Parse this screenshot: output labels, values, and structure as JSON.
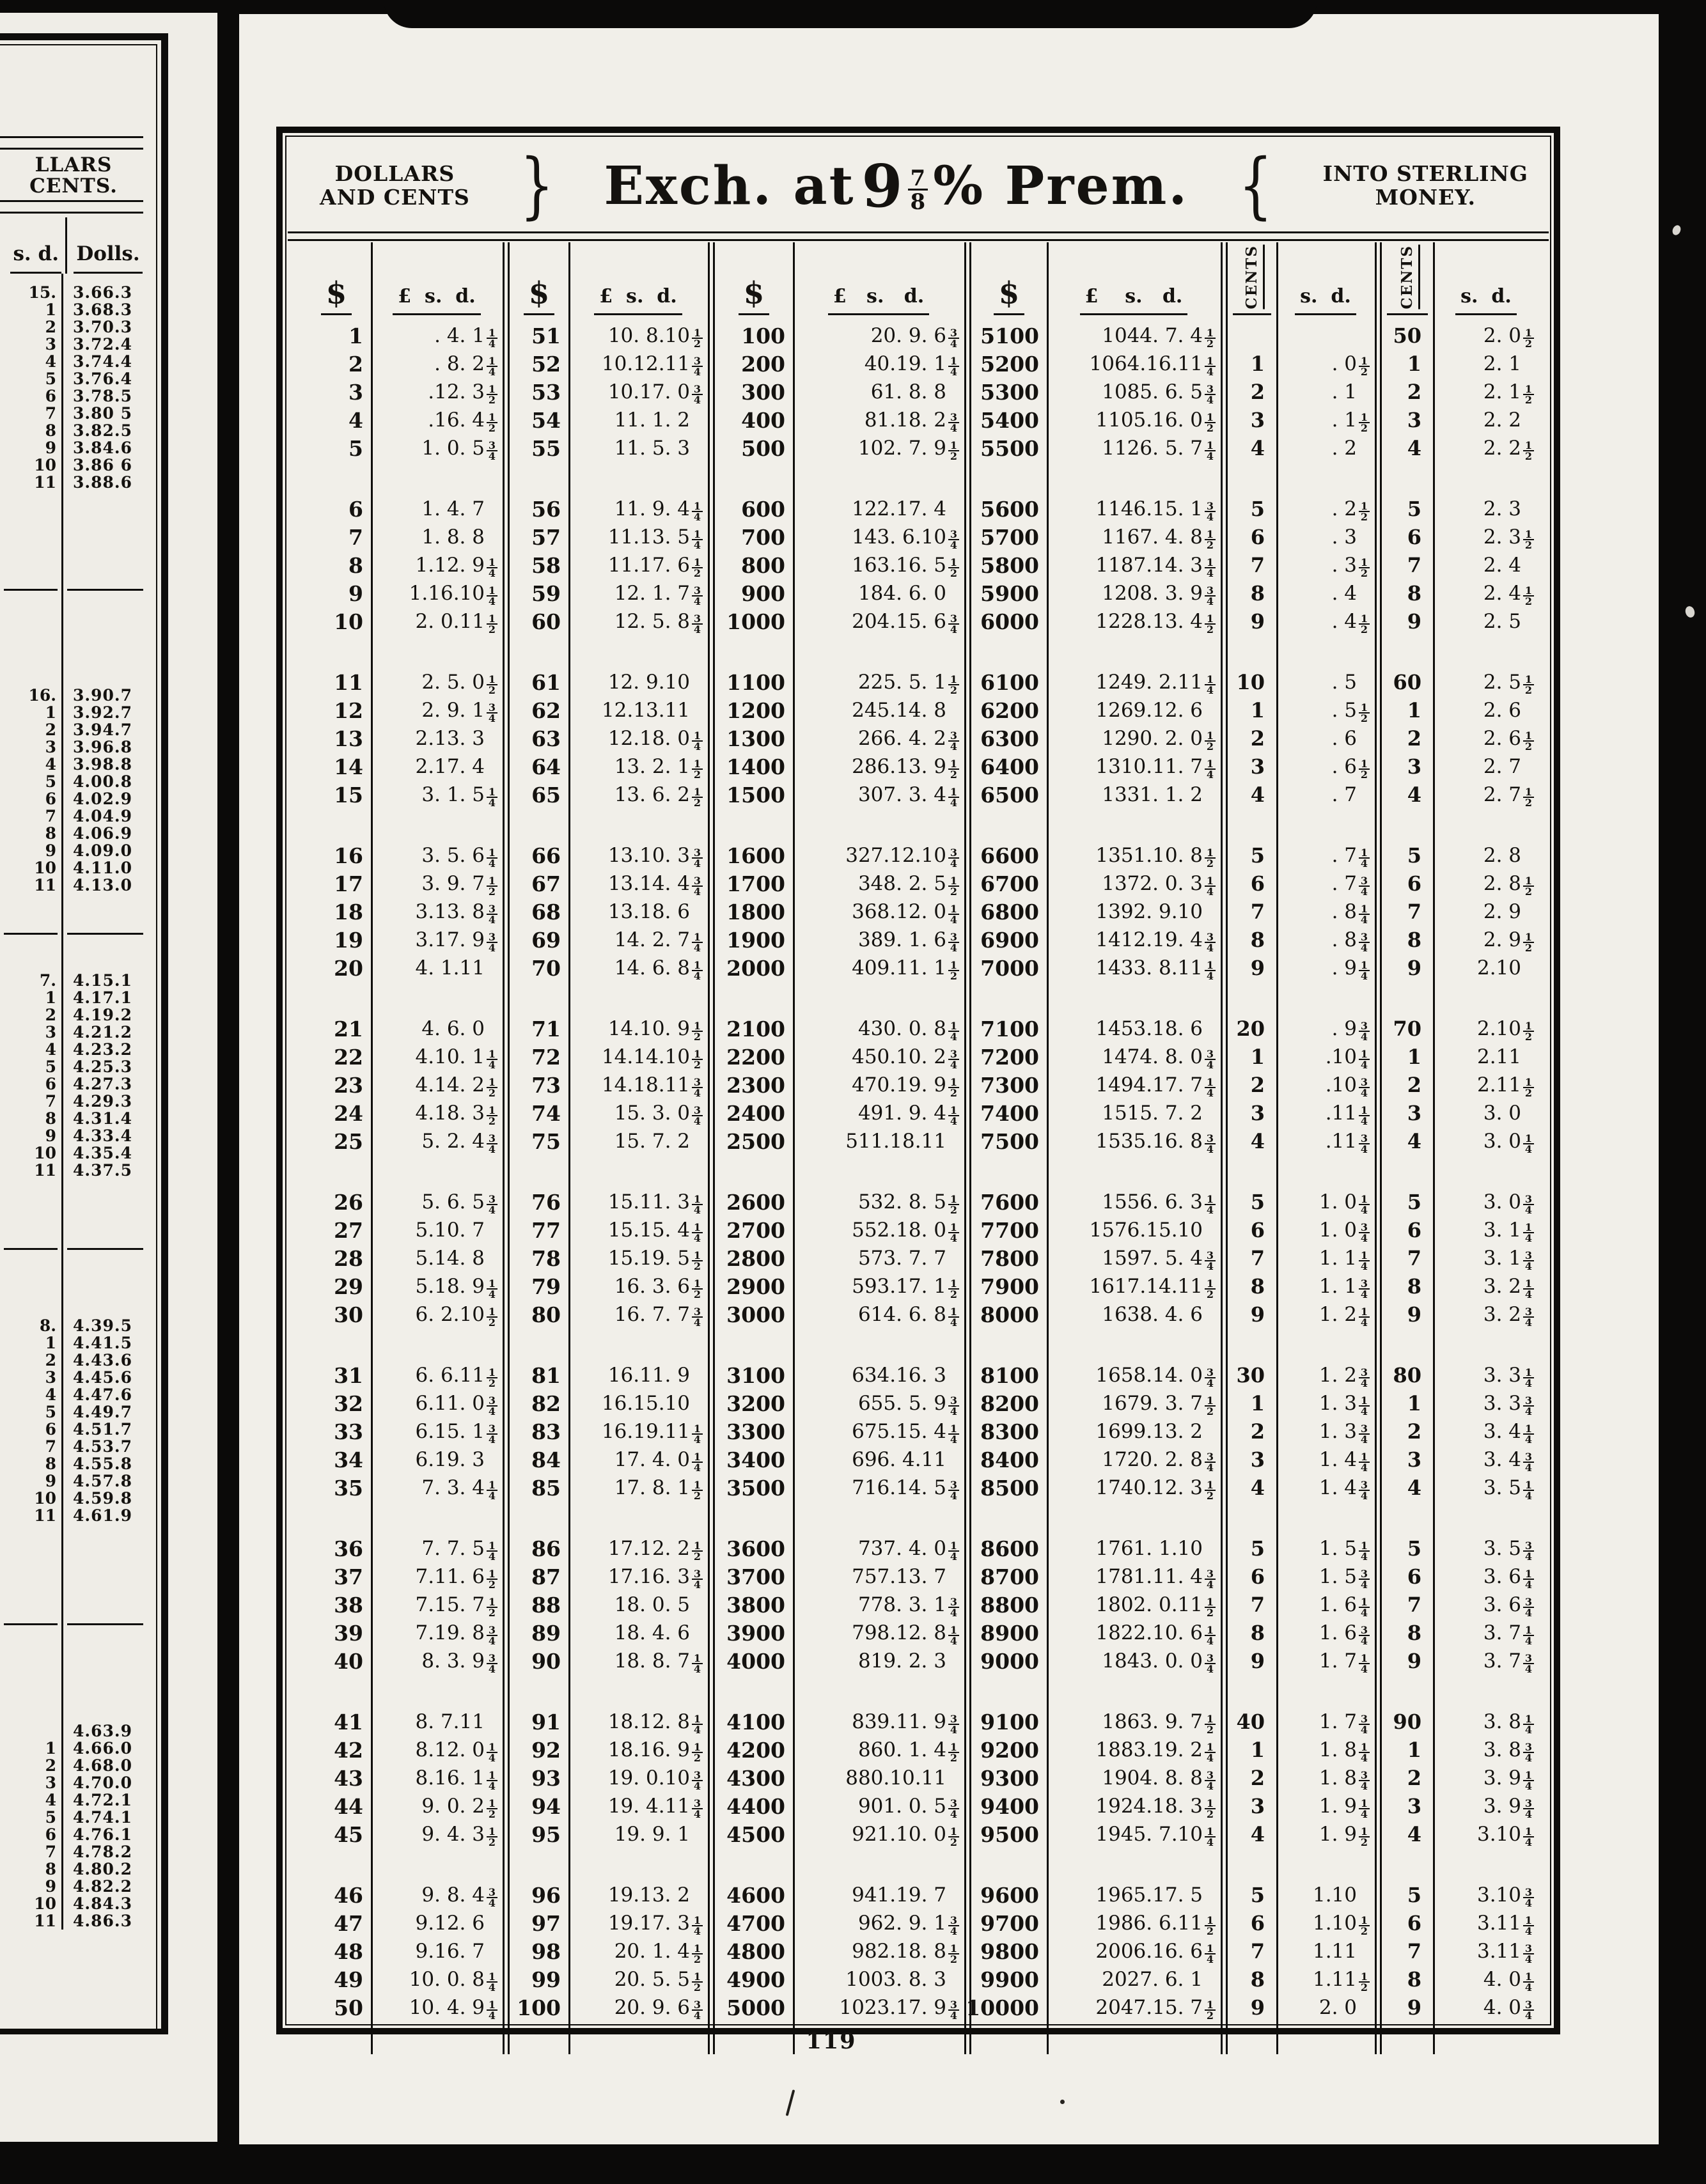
{
  "colors": {
    "ink": "#14120f",
    "paper": "#f1efe9"
  },
  "page_number": "119",
  "header": {
    "left_line1": "DOLLARS",
    "left_line2": "AND CENTS",
    "brace_left": "}",
    "title_prefix": "Exch. at",
    "title_nine": "9",
    "title_fraction_num": "7",
    "title_fraction_den": "8",
    "title_suffix": "% Prem.",
    "brace_right": "{",
    "right_line1": "INTO STERLING",
    "right_line2": "MONEY."
  },
  "main_table": {
    "column_headers": [
      "$",
      "£  s.  d.",
      "$",
      "£  s.  d.",
      "$",
      "£   s.   d.",
      "$",
      "£    s.   d.",
      "CENTS",
      "s.  d.",
      "CENTS",
      "s.  d."
    ],
    "blocks": [
      {
        "rows": [
          [
            "1",
            ". 4. 1¼",
            "51",
            "10. 8.10½",
            "100",
            "20. 9. 6¾",
            "5100",
            "1044. 7. 4½",
            "",
            "",
            "50",
            "2. 0½"
          ],
          [
            "2",
            ". 8. 2¼",
            "52",
            "10.12.11¾",
            "200",
            "40.19. 1¼",
            "5200",
            "1064.16.11¼",
            "1",
            ". 0½",
            "1",
            "2. 1"
          ],
          [
            "3",
            ".12. 3½",
            "53",
            "10.17. 0¾",
            "300",
            "61. 8. 8",
            "5300",
            "1085. 6. 5¾",
            "2",
            ". 1",
            "2",
            "2. 1½"
          ],
          [
            "4",
            ".16. 4½",
            "54",
            "11. 1. 2",
            "400",
            "81.18. 2¾",
            "5400",
            "1105.16. 0½",
            "3",
            ". 1½",
            "3",
            "2. 2"
          ],
          [
            "5",
            "1. 0. 5¾",
            "55",
            "11. 5. 3",
            "500",
            "102. 7. 9½",
            "5500",
            "1126. 5. 7¼",
            "4",
            ". 2",
            "4",
            "2. 2½"
          ]
        ]
      },
      {
        "rows": [
          [
            "6",
            "1. 4. 7",
            "56",
            "11. 9. 4¼",
            "600",
            "122.17. 4",
            "5600",
            "1146.15. 1¾",
            "5",
            ". 2½",
            "5",
            "2. 3"
          ],
          [
            "7",
            "1. 8. 8",
            "57",
            "11.13. 5¼",
            "700",
            "143. 6.10¾",
            "5700",
            "1167. 4. 8½",
            "6",
            ". 3",
            "6",
            "2. 3½"
          ],
          [
            "8",
            "1.12. 9¼",
            "58",
            "11.17. 6½",
            "800",
            "163.16. 5½",
            "5800",
            "1187.14. 3¼",
            "7",
            ". 3½",
            "7",
            "2. 4"
          ],
          [
            "9",
            "1.16.10¼",
            "59",
            "12. 1. 7¾",
            "900",
            "184. 6. 0",
            "5900",
            "1208. 3. 9¾",
            "8",
            ". 4",
            "8",
            "2. 4½"
          ],
          [
            "10",
            "2. 0.11½",
            "60",
            "12. 5. 8¾",
            "1000",
            "204.15. 6¾",
            "6000",
            "1228.13. 4½",
            "9",
            ". 4½",
            "9",
            "2. 5"
          ]
        ]
      },
      {
        "rows": [
          [
            "11",
            "2. 5. 0½",
            "61",
            "12. 9.10",
            "1100",
            "225. 5. 1½",
            "6100",
            "1249. 2.11¼",
            "10",
            ". 5",
            "60",
            "2. 5½"
          ],
          [
            "12",
            "2. 9. 1¾",
            "62",
            "12.13.11",
            "1200",
            "245.14. 8",
            "6200",
            "1269.12. 6",
            "1",
            ". 5½",
            "1",
            "2. 6"
          ],
          [
            "13",
            "2.13. 3",
            "63",
            "12.18. 0¼",
            "1300",
            "266. 4. 2¾",
            "6300",
            "1290. 2. 0½",
            "2",
            ". 6",
            "2",
            "2. 6½"
          ],
          [
            "14",
            "2.17. 4",
            "64",
            "13. 2. 1½",
            "1400",
            "286.13. 9½",
            "6400",
            "1310.11. 7¼",
            "3",
            ". 6½",
            "3",
            "2. 7"
          ],
          [
            "15",
            "3. 1. 5¼",
            "65",
            "13. 6. 2½",
            "1500",
            "307. 3. 4¼",
            "6500",
            "1331. 1. 2",
            "4",
            ". 7",
            "4",
            "2. 7½"
          ]
        ]
      },
      {
        "rows": [
          [
            "16",
            "3. 5. 6¼",
            "66",
            "13.10. 3¾",
            "1600",
            "327.12.10¾",
            "6600",
            "1351.10. 8½",
            "5",
            ". 7¼",
            "5",
            "2. 8"
          ],
          [
            "17",
            "3. 9. 7½",
            "67",
            "13.14. 4¾",
            "1700",
            "348. 2. 5½",
            "6700",
            "1372. 0. 3¼",
            "6",
            ". 7¾",
            "6",
            "2. 8½"
          ],
          [
            "18",
            "3.13. 8¾",
            "68",
            "13.18. 6",
            "1800",
            "368.12. 0¼",
            "6800",
            "1392. 9.10",
            "7",
            ". 8¼",
            "7",
            "2. 9"
          ],
          [
            "19",
            "3.17. 9¾",
            "69",
            "14. 2. 7¼",
            "1900",
            "389. 1. 6¾",
            "6900",
            "1412.19. 4¾",
            "8",
            ". 8¾",
            "8",
            "2. 9½"
          ],
          [
            "20",
            "4. 1.11",
            "70",
            "14. 6. 8¼",
            "2000",
            "409.11. 1½",
            "7000",
            "1433. 8.11¼",
            "9",
            ". 9¼",
            "9",
            "2.10"
          ]
        ]
      },
      {
        "rows": [
          [
            "21",
            "4. 6. 0",
            "71",
            "14.10. 9½",
            "2100",
            "430. 0. 8¼",
            "7100",
            "1453.18. 6",
            "20",
            ". 9¾",
            "70",
            "2.10½"
          ],
          [
            "22",
            "4.10. 1¼",
            "72",
            "14.14.10½",
            "2200",
            "450.10. 2¾",
            "7200",
            "1474. 8. 0¾",
            "1",
            ".10¼",
            "1",
            "2.11"
          ],
          [
            "23",
            "4.14. 2½",
            "73",
            "14.18.11¾",
            "2300",
            "470.19. 9½",
            "7300",
            "1494.17. 7¼",
            "2",
            ".10¾",
            "2",
            "2.11½"
          ],
          [
            "24",
            "4.18. 3½",
            "74",
            "15. 3. 0¾",
            "2400",
            "491. 9. 4¼",
            "7400",
            "1515. 7. 2",
            "3",
            ".11¼",
            "3",
            "3. 0"
          ],
          [
            "25",
            "5. 2. 4¾",
            "75",
            "15. 7. 2",
            "2500",
            "511.18.11",
            "7500",
            "1535.16. 8¾",
            "4",
            ".11¾",
            "4",
            "3. 0¼"
          ]
        ]
      },
      {
        "rows": [
          [
            "26",
            "5. 6. 5¾",
            "76",
            "15.11. 3¼",
            "2600",
            "532. 8. 5½",
            "7600",
            "1556. 6. 3¼",
            "5",
            "1. 0¼",
            "5",
            "3. 0¾"
          ],
          [
            "27",
            "5.10. 7",
            "77",
            "15.15. 4¼",
            "2700",
            "552.18. 0¼",
            "7700",
            "1576.15.10",
            "6",
            "1. 0¾",
            "6",
            "3. 1¼"
          ],
          [
            "28",
            "5.14. 8",
            "78",
            "15.19. 5½",
            "2800",
            "573. 7. 7",
            "7800",
            "1597. 5. 4¾",
            "7",
            "1. 1¼",
            "7",
            "3. 1¾"
          ],
          [
            "29",
            "5.18. 9¼",
            "79",
            "16. 3. 6½",
            "2900",
            "593.17. 1½",
            "7900",
            "1617.14.11½",
            "8",
            "1. 1¾",
            "8",
            "3. 2¼"
          ],
          [
            "30",
            "6. 2.10½",
            "80",
            "16. 7. 7¾",
            "3000",
            "614. 6. 8¼",
            "8000",
            "1638. 4. 6",
            "9",
            "1. 2¼",
            "9",
            "3. 2¾"
          ]
        ]
      },
      {
        "rows": [
          [
            "31",
            "6. 6.11½",
            "81",
            "16.11. 9",
            "3100",
            "634.16. 3",
            "8100",
            "1658.14. 0¾",
            "30",
            "1. 2¾",
            "80",
            "3. 3¼"
          ],
          [
            "32",
            "6.11. 0¾",
            "82",
            "16.15.10",
            "3200",
            "655. 5. 9¾",
            "8200",
            "1679. 3. 7½",
            "1",
            "1. 3¼",
            "1",
            "3. 3¾"
          ],
          [
            "33",
            "6.15. 1¾",
            "83",
            "16.19.11¼",
            "3300",
            "675.15. 4¼",
            "8300",
            "1699.13. 2",
            "2",
            "1. 3¾",
            "2",
            "3. 4¼"
          ],
          [
            "34",
            "6.19. 3",
            "84",
            "17. 4. 0¼",
            "3400",
            "696. 4.11",
            "8400",
            "1720. 2. 8¾",
            "3",
            "1. 4¼",
            "3",
            "3. 4¾"
          ],
          [
            "35",
            "7. 3. 4¼",
            "85",
            "17. 8. 1½",
            "3500",
            "716.14. 5¾",
            "8500",
            "1740.12. 3½",
            "4",
            "1. 4¾",
            "4",
            "3. 5¼"
          ]
        ]
      },
      {
        "rows": [
          [
            "36",
            "7. 7. 5¼",
            "86",
            "17.12. 2½",
            "3600",
            "737. 4. 0¼",
            "8600",
            "1761. 1.10",
            "5",
            "1. 5¼",
            "5",
            "3. 5¾"
          ],
          [
            "37",
            "7.11. 6½",
            "87",
            "17.16. 3¾",
            "3700",
            "757.13. 7",
            "8700",
            "1781.11. 4¾",
            "6",
            "1. 5¾",
            "6",
            "3. 6¼"
          ],
          [
            "38",
            "7.15. 7½",
            "88",
            "18. 0. 5",
            "3800",
            "778. 3. 1¾",
            "8800",
            "1802. 0.11½",
            "7",
            "1. 6¼",
            "7",
            "3. 6¾"
          ],
          [
            "39",
            "7.19. 8¾",
            "89",
            "18. 4. 6",
            "3900",
            "798.12. 8¼",
            "8900",
            "1822.10. 6¼",
            "8",
            "1. 6¾",
            "8",
            "3. 7¼"
          ],
          [
            "40",
            "8. 3. 9¾",
            "90",
            "18. 8. 7¼",
            "4000",
            "819. 2. 3",
            "9000",
            "1843. 0. 0¾",
            "9",
            "1. 7¼",
            "9",
            "3. 7¾"
          ]
        ]
      },
      {
        "rows": [
          [
            "41",
            "8. 7.11",
            "91",
            "18.12. 8¼",
            "4100",
            "839.11. 9¾",
            "9100",
            "1863. 9. 7½",
            "40",
            "1. 7¾",
            "90",
            "3. 8¼"
          ],
          [
            "42",
            "8.12. 0¼",
            "92",
            "18.16. 9½",
            "4200",
            "860. 1. 4½",
            "9200",
            "1883.19. 2¼",
            "1",
            "1. 8¼",
            "1",
            "3. 8¾"
          ],
          [
            "43",
            "8.16. 1¼",
            "93",
            "19. 0.10¾",
            "4300",
            "880.10.11",
            "9300",
            "1904. 8. 8¾",
            "2",
            "1. 8¾",
            "2",
            "3. 9¼"
          ],
          [
            "44",
            "9. 0. 2½",
            "94",
            "19. 4.11¾",
            "4400",
            "901. 0. 5¾",
            "9400",
            "1924.18. 3½",
            "3",
            "1. 9¼",
            "3",
            "3. 9¾"
          ],
          [
            "45",
            "9. 4. 3½",
            "95",
            "19. 9. 1",
            "4500",
            "921.10. 0½",
            "9500",
            "1945. 7.10¼",
            "4",
            "1. 9½",
            "4",
            "3.10¼"
          ]
        ]
      },
      {
        "rows": [
          [
            "46",
            "9. 8. 4¾",
            "96",
            "19.13. 2",
            "4600",
            "941.19. 7",
            "9600",
            "1965.17. 5",
            "5",
            "1.10",
            "5",
            "3.10¾"
          ],
          [
            "47",
            "9.12. 6",
            "97",
            "19.17. 3¼",
            "4700",
            "962. 9. 1¾",
            "9700",
            "1986. 6.11½",
            "6",
            "1.10½",
            "6",
            "3.11¼"
          ],
          [
            "48",
            "9.16. 7",
            "98",
            "20. 1. 4½",
            "4800",
            "982.18. 8½",
            "9800",
            "2006.16. 6¼",
            "7",
            "1.11",
            "7",
            "3.11¾"
          ],
          [
            "49",
            "10. 0. 8¼",
            "99",
            "20. 5. 5½",
            "4900",
            "1003. 8. 3",
            "9900",
            "2027. 6. 1",
            "8",
            "1.11½",
            "8",
            "4. 0¼"
          ],
          [
            "50",
            "10. 4. 9¼",
            "100",
            "20. 9. 6¾",
            "5000",
            "1023.17. 9¾",
            "10000",
            "2047.15. 7½",
            "9",
            "2. 0",
            "9",
            "4. 0¾"
          ]
        ]
      }
    ]
  },
  "left_table": {
    "header_line1": "LLARS",
    "header_line2": "CENTS.",
    "column_headers": [
      "s. d.",
      "Dolls."
    ],
    "blocks": [
      {
        "rows": [
          [
            "15.",
            "3.66.3"
          ],
          [
            "1",
            "3.68.3"
          ],
          [
            "2",
            "3.70.3"
          ],
          [
            "3",
            "3.72.4"
          ],
          [
            "4",
            "3.74.4"
          ],
          [
            "5",
            "3.76.4"
          ],
          [
            "6",
            "3.78.5"
          ],
          [
            "7",
            "3.80 5"
          ],
          [
            "8",
            "3.82.5"
          ],
          [
            "9",
            "3.84.6"
          ],
          [
            "10",
            "3.86 6"
          ],
          [
            "11",
            "3.88.6"
          ]
        ]
      },
      {
        "rows": [
          [
            "16.",
            "3.90.7"
          ],
          [
            "1",
            "3.92.7"
          ],
          [
            "2",
            "3.94.7"
          ],
          [
            "3",
            "3.96.8"
          ],
          [
            "4",
            "3.98.8"
          ],
          [
            "5",
            "4.00.8"
          ],
          [
            "6",
            "4.02.9"
          ],
          [
            "7",
            "4.04.9"
          ],
          [
            "8",
            "4.06.9"
          ],
          [
            "9",
            "4.09.0"
          ],
          [
            "10",
            "4.11.0"
          ],
          [
            "11",
            "4.13.0"
          ]
        ]
      },
      {
        "rows": [
          [
            "7.",
            "4.15.1"
          ],
          [
            "1",
            "4.17.1"
          ],
          [
            "2",
            "4.19.2"
          ],
          [
            "3",
            "4.21.2"
          ],
          [
            "4",
            "4.23.2"
          ],
          [
            "5",
            "4.25.3"
          ],
          [
            "6",
            "4.27.3"
          ],
          [
            "7",
            "4.29.3"
          ],
          [
            "8",
            "4.31.4"
          ],
          [
            "9",
            "4.33.4"
          ],
          [
            "10",
            "4.35.4"
          ],
          [
            "11",
            "4.37.5"
          ]
        ]
      },
      {
        "rows": [
          [
            "8.",
            "4.39.5"
          ],
          [
            "1",
            "4.41.5"
          ],
          [
            "2",
            "4.43.6"
          ],
          [
            "3",
            "4.45.6"
          ],
          [
            "4",
            "4.47.6"
          ],
          [
            "5",
            "4.49.7"
          ],
          [
            "6",
            "4.51.7"
          ],
          [
            "7",
            "4.53.7"
          ],
          [
            "8",
            "4.55.8"
          ],
          [
            "9",
            "4.57.8"
          ],
          [
            "10",
            "4.59.8"
          ],
          [
            "11",
            "4.61.9"
          ]
        ]
      },
      {
        "rows": [
          [
            "",
            "4.63.9"
          ],
          [
            "1",
            "4.66.0"
          ],
          [
            "2",
            "4.68.0"
          ],
          [
            "3",
            "4.70.0"
          ],
          [
            "4",
            "4.72.1"
          ],
          [
            "5",
            "4.74.1"
          ],
          [
            "6",
            "4.76.1"
          ],
          [
            "7",
            "4.78.2"
          ],
          [
            "8",
            "4.80.2"
          ],
          [
            "9",
            "4.82.2"
          ],
          [
            "10",
            "4.84.3"
          ],
          [
            "11",
            "4.86.3"
          ]
        ]
      }
    ]
  }
}
